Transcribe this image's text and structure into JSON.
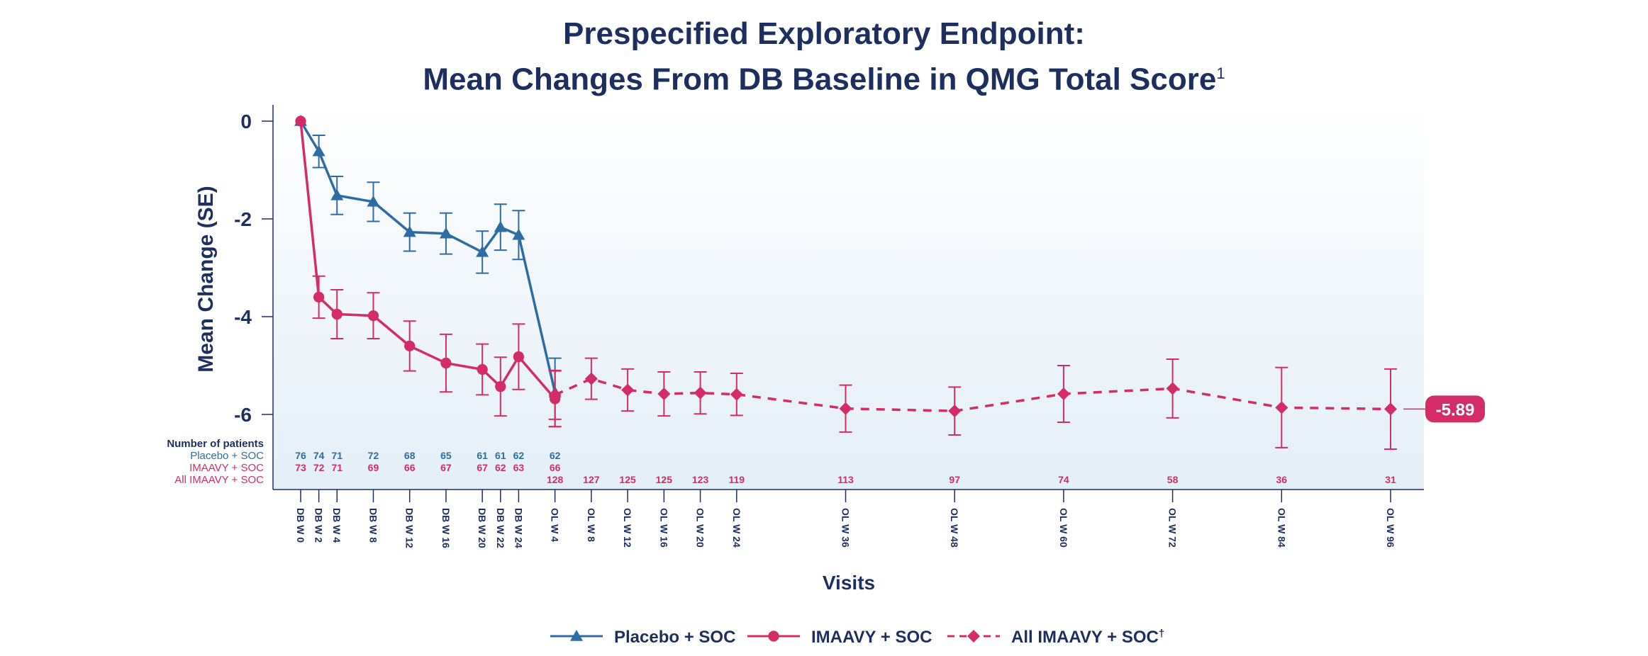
{
  "chart_data": {
    "type": "line",
    "title_line1": "Prespecified Exploratory Endpoint:",
    "title_line2": "Mean Changes From DB Baseline in QMG Total Score",
    "title_superscript": "1",
    "xlabel": "Visits",
    "ylabel": "Mean Change (SE)",
    "ylim": [
      -6.5,
      0.3
    ],
    "yticks": [
      0,
      -2,
      -4,
      -6
    ],
    "x": [
      "DB W 0",
      "DB W 2",
      "DB W 4",
      "DB W 8",
      "DB W 12",
      "DB W 16",
      "DB W 20",
      "DB W 22",
      "DB W 24",
      "OL W 4",
      "OL W 8",
      "OL W 12",
      "OL W 16",
      "OL W 20",
      "OL W 24",
      "OL W 36",
      "OL W 48",
      "OL W 60",
      "OL W 72",
      "OL W 84",
      "OL W 96"
    ],
    "x_weeks": [
      0,
      2,
      4,
      8,
      12,
      16,
      20,
      22,
      24,
      28,
      32,
      36,
      40,
      44,
      48,
      60,
      72,
      84,
      96,
      108,
      120
    ],
    "series": [
      {
        "name": "Placebo + SOC",
        "color": "#2e6da4",
        "marker": "triangle",
        "dashed": false,
        "x": [
          "DB W 0",
          "DB W 2",
          "DB W 4",
          "DB W 8",
          "DB W 12",
          "DB W 16",
          "DB W 20",
          "DB W 22",
          "DB W 24",
          "OL W 4"
        ],
        "values": [
          0,
          -0.62,
          -1.52,
          -1.65,
          -2.27,
          -2.3,
          -2.68,
          -2.17,
          -2.33,
          -5.55
        ],
        "se": [
          0,
          0.33,
          0.39,
          0.4,
          0.39,
          0.42,
          0.43,
          0.47,
          0.5,
          0.7
        ]
      },
      {
        "name": "IMAAVY + SOC",
        "color": "#d42c66",
        "marker": "circle",
        "dashed": false,
        "x": [
          "DB W 0",
          "DB W 2",
          "DB W 4",
          "DB W 8",
          "DB W 12",
          "DB W 16",
          "DB W 20",
          "DB W 22",
          "DB W 24",
          "OL W 4"
        ],
        "values": [
          0,
          -3.6,
          -3.95,
          -3.98,
          -4.6,
          -4.95,
          -5.08,
          -5.43,
          -4.82,
          -5.68
        ],
        "se": [
          0,
          0.43,
          0.5,
          0.47,
          0.51,
          0.59,
          0.52,
          0.6,
          0.67,
          0.57
        ]
      },
      {
        "name": "All IMAAVY + SOC",
        "name_mark": "†",
        "color": "#d42c66",
        "marker": "diamond",
        "dashed": true,
        "x": [
          "OL W 4",
          "OL W 8",
          "OL W 12",
          "OL W 16",
          "OL W 20",
          "OL W 24",
          "OL W 36",
          "OL W 48",
          "OL W 60",
          "OL W 72",
          "OL W 84",
          "OL W 96"
        ],
        "values": [
          -5.6,
          -5.27,
          -5.5,
          -5.58,
          -5.56,
          -5.59,
          -5.88,
          -5.93,
          -5.58,
          -5.47,
          -5.86,
          -5.89
        ],
        "se": [
          0.5,
          0.42,
          0.43,
          0.45,
          0.43,
          0.43,
          0.48,
          0.49,
          0.58,
          0.6,
          0.82,
          0.82
        ]
      }
    ],
    "patients": {
      "header": "Number of patients",
      "rows": [
        {
          "label": "Placebo + SOC",
          "color": "#2e6da4",
          "x": [
            "DB W 0",
            "DB W 2",
            "DB W 4",
            "DB W 8",
            "DB W 12",
            "DB W 16",
            "DB W 20",
            "DB W 22",
            "DB W 24",
            "OL W 4"
          ],
          "values": [
            "76",
            "74",
            "71",
            "72",
            "68",
            "65",
            "61",
            "61",
            "62",
            "62"
          ]
        },
        {
          "label": "IMAAVY + SOC",
          "color": "#d42c66",
          "x": [
            "DB W 0",
            "DB W 2",
            "DB W 4",
            "DB W 8",
            "DB W 12",
            "DB W 16",
            "DB W 20",
            "DB W 22",
            "DB W 24",
            "OL W 4"
          ],
          "values": [
            "73",
            "72",
            "71",
            "69",
            "66",
            "67",
            "67",
            "62",
            "63",
            "66"
          ]
        },
        {
          "label": "All IMAAVY + SOC",
          "color": "#d42c66",
          "x": [
            "OL W 4",
            "OL W 8",
            "OL W 12",
            "OL W 16",
            "OL W 20",
            "OL W 24",
            "OL W 36",
            "OL W 48",
            "OL W 60",
            "OL W 72",
            "OL W 84",
            "OL W 96"
          ],
          "values": [
            "128",
            "127",
            "125",
            "125",
            "123",
            "119",
            "113",
            "97",
            "74",
            "58",
            "36",
            "31"
          ]
        }
      ]
    },
    "final_value_callout": "-5.89",
    "legend": [
      {
        "label": "Placebo + SOC",
        "marker": "triangle",
        "color": "#2e6da4",
        "dashed": false
      },
      {
        "label": "IMAAVY + SOC",
        "marker": "circle",
        "color": "#d42c66",
        "dashed": false
      },
      {
        "label": "All IMAAVY + SOC",
        "mark": "†",
        "marker": "diamond",
        "color": "#d42c66",
        "dashed": true
      }
    ],
    "legend_position": "bottom-center",
    "grid": false
  }
}
